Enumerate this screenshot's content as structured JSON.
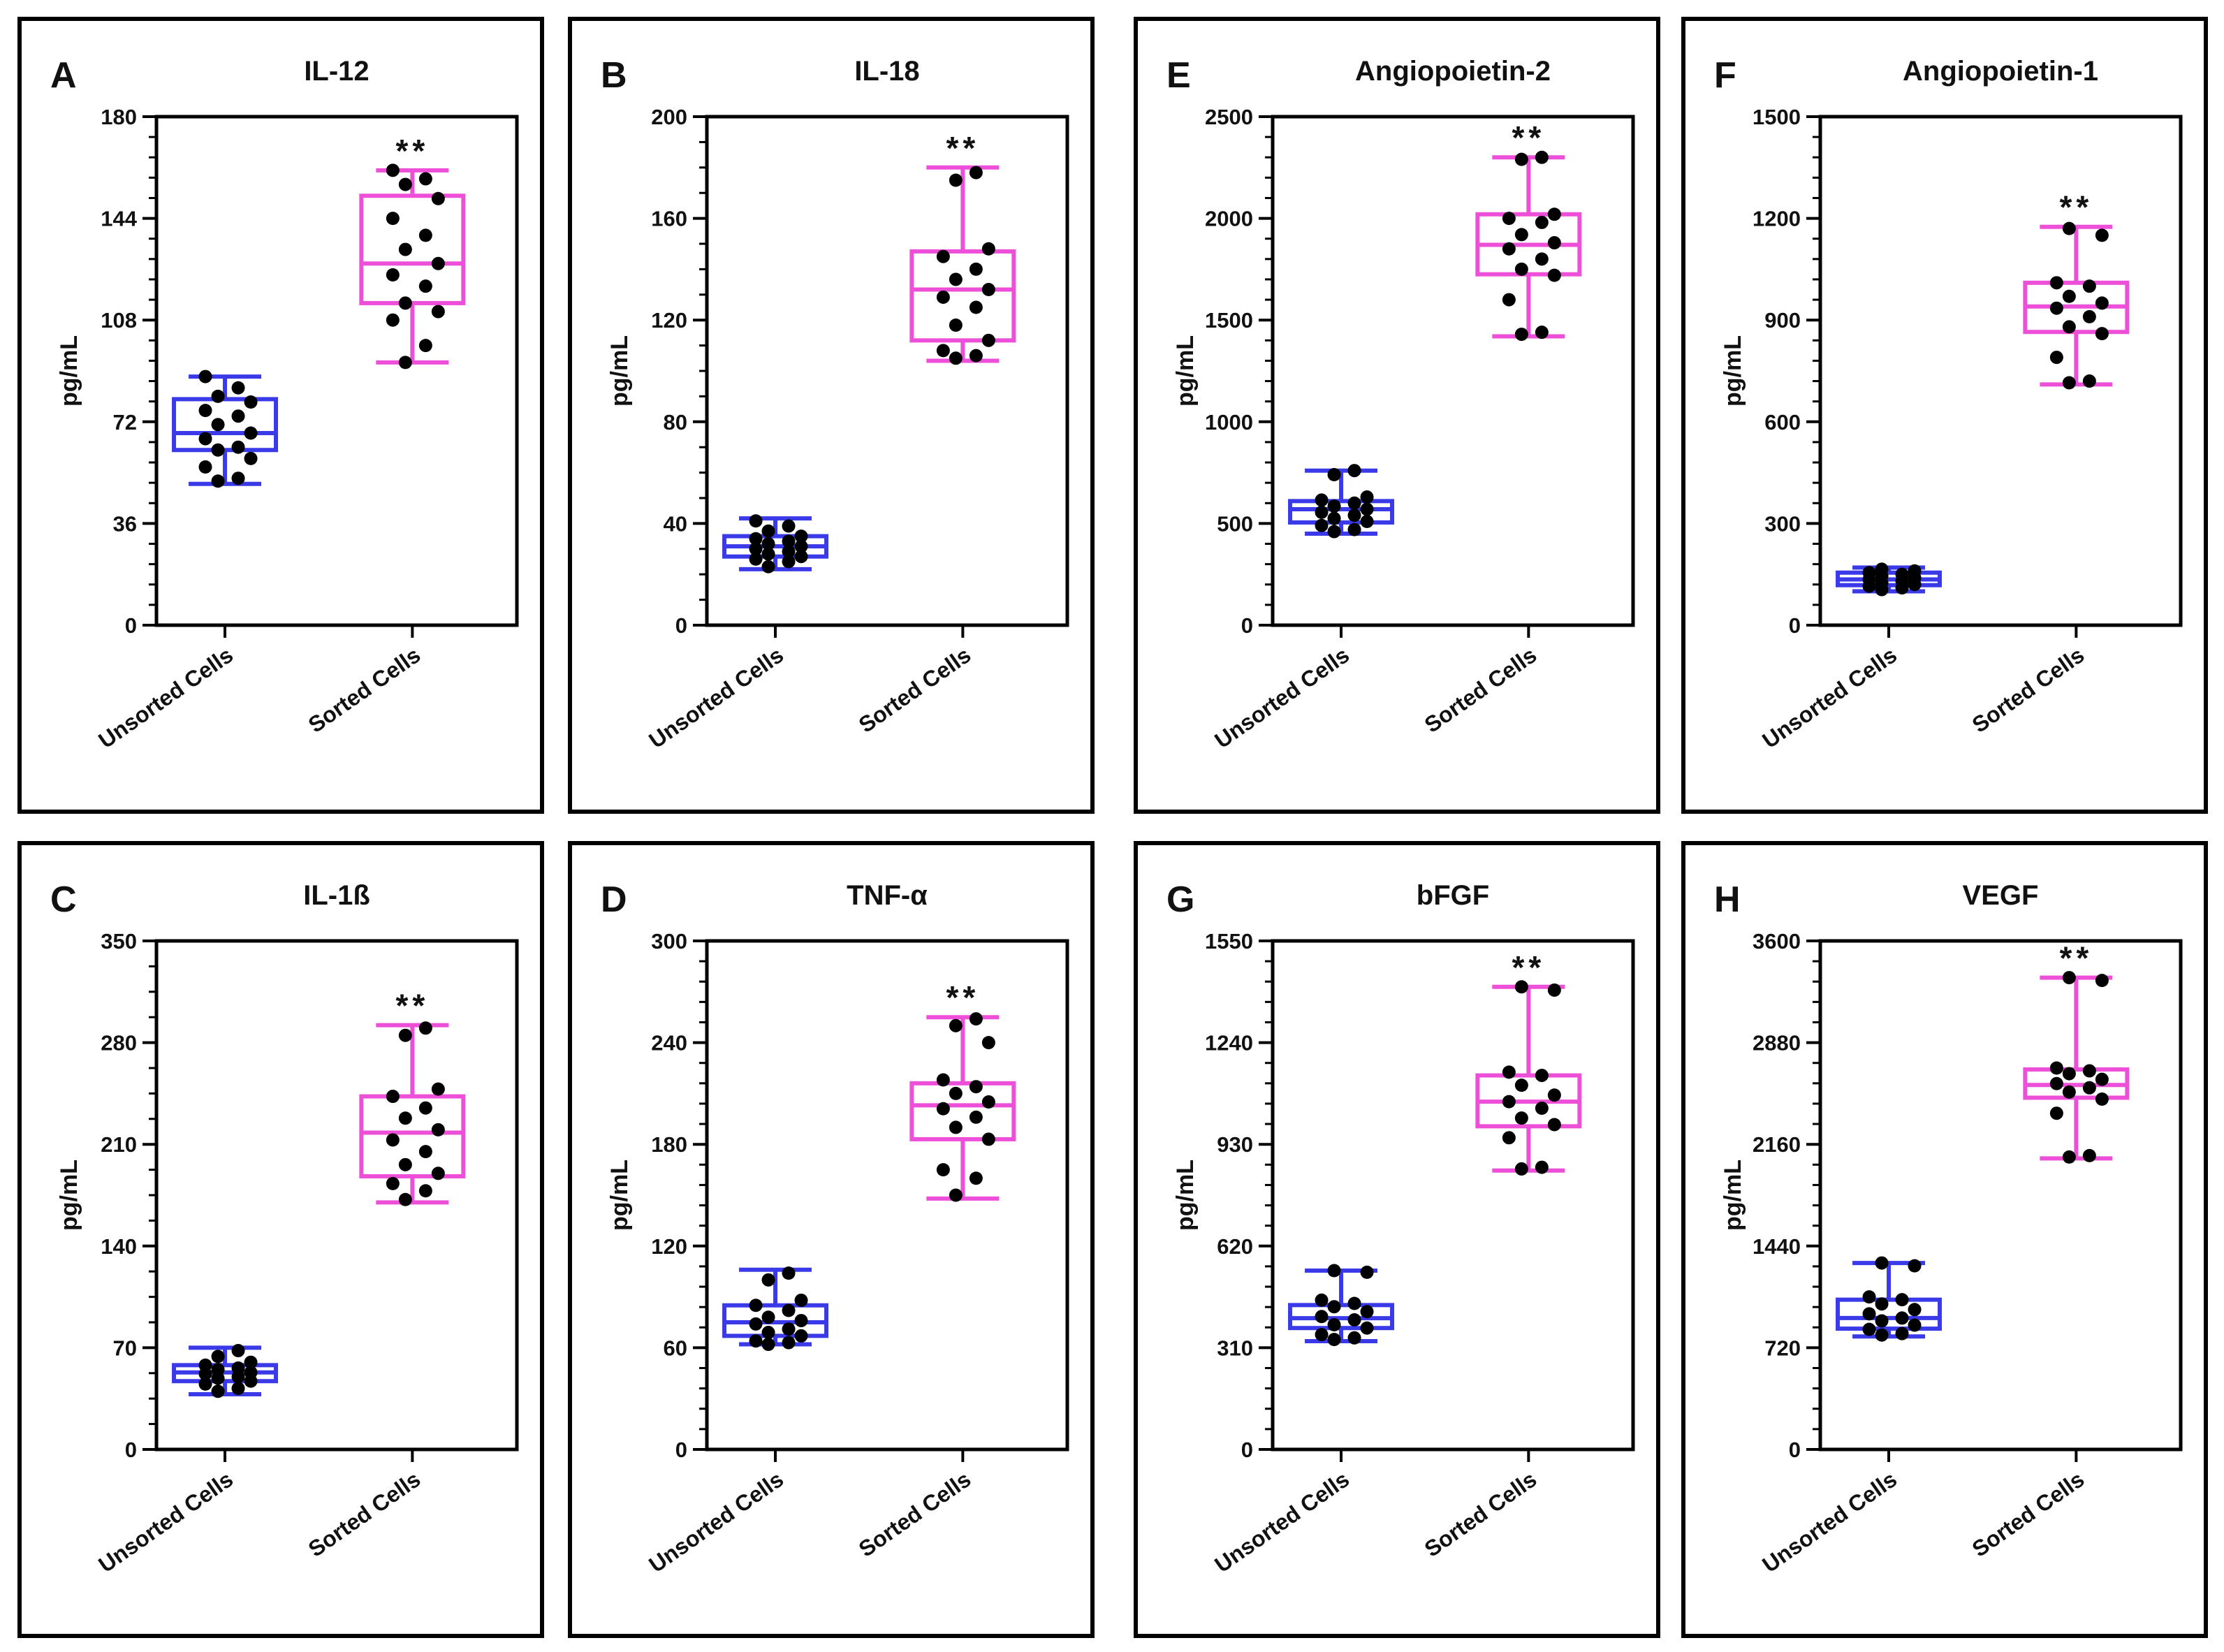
{
  "figure": {
    "colors": {
      "unsorted": "#3a3ae8",
      "sorted": "#ee4fd8",
      "points": "#000000",
      "frame": "#000000"
    }
  },
  "chart_data": [
    {
      "letter": "A",
      "title": "IL-12",
      "type": "box",
      "ylabel": "pg/mL",
      "ylim": [
        0,
        180
      ],
      "yticks": [
        "0",
        "36",
        "72",
        "108",
        "144",
        "180"
      ],
      "yminor": 4,
      "categories": [
        "Unsorted Cells",
        "Sorted Cells"
      ],
      "significance": "**",
      "series": [
        {
          "name": "Unsorted Cells",
          "min": 50,
          "q1": 62,
          "median": 68,
          "q3": 80,
          "max": 88,
          "points": [
            51,
            52,
            56,
            59,
            62,
            63,
            66,
            68,
            71,
            74,
            76,
            79,
            81,
            84,
            88
          ]
        },
        {
          "name": "Sorted Cells",
          "min": 93,
          "q1": 114,
          "median": 128,
          "q3": 152,
          "max": 161,
          "points": [
            93,
            99,
            108,
            111,
            114,
            120,
            124,
            128,
            133,
            138,
            144,
            151,
            156,
            158,
            161
          ]
        }
      ]
    },
    {
      "letter": "B",
      "title": "IL-18",
      "type": "box",
      "ylabel": "pg/mL",
      "ylim": [
        0,
        200
      ],
      "yticks": [
        "0",
        "40",
        "80",
        "120",
        "160",
        "200"
      ],
      "yminor": 3,
      "categories": [
        "Unsorted Cells",
        "Sorted Cells"
      ],
      "significance": "**",
      "series": [
        {
          "name": "Unsorted Cells",
          "min": 22,
          "q1": 27,
          "median": 31,
          "q3": 35,
          "max": 42,
          "points": [
            23,
            25,
            26,
            27,
            28,
            29,
            30,
            31,
            32,
            33,
            34,
            35,
            37,
            39,
            41
          ]
        },
        {
          "name": "Sorted Cells",
          "min": 104,
          "q1": 112,
          "median": 132,
          "q3": 147,
          "max": 180,
          "points": [
            105,
            106,
            108,
            112,
            118,
            125,
            129,
            132,
            136,
            140,
            145,
            148,
            175,
            178
          ]
        }
      ]
    },
    {
      "letter": "E",
      "title": "Angiopoietin-2",
      "type": "box",
      "ylabel": "pg/mL",
      "ylim": [
        0,
        2500
      ],
      "yticks": [
        "0",
        "500",
        "1000",
        "1500",
        "2000",
        "2500"
      ],
      "yminor": 4,
      "categories": [
        "Unsorted Cells",
        "Sorted Cells"
      ],
      "significance": "**",
      "series": [
        {
          "name": "Unsorted Cells",
          "min": 450,
          "q1": 505,
          "median": 570,
          "q3": 610,
          "max": 760,
          "points": [
            460,
            470,
            490,
            510,
            525,
            540,
            555,
            570,
            585,
            600,
            615,
            630,
            740,
            760
          ]
        },
        {
          "name": "Sorted Cells",
          "min": 1420,
          "q1": 1725,
          "median": 1870,
          "q3": 2020,
          "max": 2300,
          "points": [
            1430,
            1440,
            1600,
            1720,
            1750,
            1800,
            1850,
            1880,
            1920,
            1980,
            2000,
            2020,
            2290,
            2300
          ]
        }
      ]
    },
    {
      "letter": "F",
      "title": "Angiopoietin-1",
      "type": "box",
      "ylabel": "pg/mL",
      "ylim": [
        0,
        1500
      ],
      "yticks": [
        "0",
        "300",
        "600",
        "900",
        "1200",
        "1500"
      ],
      "yminor": 4,
      "categories": [
        "Unsorted Cells",
        "Sorted Cells"
      ],
      "significance": "**",
      "series": [
        {
          "name": "Unsorted Cells",
          "min": 100,
          "q1": 118,
          "median": 135,
          "q3": 155,
          "max": 170,
          "points": [
            105,
            110,
            115,
            120,
            125,
            130,
            135,
            140,
            145,
            150,
            155,
            160,
            165
          ]
        },
        {
          "name": "Sorted Cells",
          "min": 710,
          "q1": 865,
          "median": 940,
          "q3": 1010,
          "max": 1175,
          "points": [
            715,
            720,
            790,
            860,
            880,
            910,
            935,
            950,
            970,
            1000,
            1010,
            1150,
            1170
          ]
        }
      ]
    },
    {
      "letter": "C",
      "title": "IL-1ß",
      "type": "box",
      "ylabel": "pg/mL",
      "ylim": [
        0,
        350
      ],
      "yticks": [
        "0",
        "70",
        "140",
        "210",
        "280",
        "350"
      ],
      "yminor": 3,
      "categories": [
        "Unsorted Cells",
        "Sorted Cells"
      ],
      "significance": "**",
      "series": [
        {
          "name": "Unsorted Cells",
          "min": 38,
          "q1": 47,
          "median": 53,
          "q3": 58,
          "max": 70,
          "points": [
            40,
            42,
            45,
            47,
            49,
            50,
            52,
            53,
            55,
            56,
            58,
            60,
            64,
            68
          ]
        },
        {
          "name": "Sorted Cells",
          "min": 170,
          "q1": 188,
          "median": 218,
          "q3": 243,
          "max": 292,
          "points": [
            172,
            178,
            183,
            190,
            196,
            205,
            213,
            220,
            228,
            235,
            243,
            248,
            285,
            290
          ]
        }
      ]
    },
    {
      "letter": "D",
      "title": "TNF-α",
      "type": "box",
      "ylabel": "pg/mL",
      "ylim": [
        0,
        300
      ],
      "yticks": [
        "0",
        "60",
        "120",
        "180",
        "240",
        "300"
      ],
      "yminor": 4,
      "categories": [
        "Unsorted Cells",
        "Sorted Cells"
      ],
      "significance": "**",
      "series": [
        {
          "name": "Unsorted Cells",
          "min": 62,
          "q1": 67,
          "median": 75,
          "q3": 85,
          "max": 106,
          "points": [
            62,
            63,
            64,
            67,
            69,
            71,
            74,
            76,
            78,
            82,
            85,
            88,
            100,
            104
          ]
        },
        {
          "name": "Sorted Cells",
          "min": 148,
          "q1": 183,
          "median": 203,
          "q3": 216,
          "max": 255,
          "points": [
            150,
            160,
            165,
            183,
            190,
            196,
            201,
            205,
            210,
            214,
            218,
            240,
            250,
            254
          ]
        }
      ]
    },
    {
      "letter": "G",
      "title": "bFGF",
      "type": "box",
      "ylabel": "pg/mL",
      "ylim": [
        0,
        1550
      ],
      "yticks": [
        "0",
        "310",
        "620",
        "930",
        "1240",
        "1550"
      ],
      "yminor": 4,
      "categories": [
        "Unsorted Cells",
        "Sorted Cells"
      ],
      "significance": "**",
      "series": [
        {
          "name": "Unsorted Cells",
          "min": 330,
          "q1": 370,
          "median": 400,
          "q3": 440,
          "max": 545,
          "points": [
            335,
            340,
            350,
            370,
            380,
            395,
            405,
            420,
            435,
            445,
            455,
            540,
            545
          ]
        },
        {
          "name": "Sorted Cells",
          "min": 850,
          "q1": 985,
          "median": 1060,
          "q3": 1140,
          "max": 1410,
          "points": [
            855,
            860,
            950,
            990,
            1010,
            1040,
            1060,
            1080,
            1110,
            1140,
            1150,
            1400,
            1410
          ]
        }
      ]
    },
    {
      "letter": "H",
      "title": "VEGF",
      "type": "box",
      "ylabel": "pg/mL",
      "ylim": [
        0,
        3600
      ],
      "yticks": [
        "0",
        "720",
        "1440",
        "2160",
        "2880",
        "3600"
      ],
      "yminor": 4,
      "categories": [
        "Unsorted Cells",
        "Sorted Cells"
      ],
      "significance": "**",
      "series": [
        {
          "name": "Unsorted Cells",
          "min": 800,
          "q1": 855,
          "median": 930,
          "q3": 1060,
          "max": 1320,
          "points": [
            810,
            820,
            850,
            880,
            910,
            930,
            960,
            990,
            1030,
            1060,
            1080,
            1300,
            1320
          ]
        },
        {
          "name": "Sorted Cells",
          "min": 2060,
          "q1": 2490,
          "median": 2580,
          "q3": 2690,
          "max": 3340,
          "points": [
            2070,
            2080,
            2380,
            2480,
            2530,
            2560,
            2590,
            2620,
            2660,
            2680,
            2700,
            3320,
            3340
          ]
        }
      ]
    }
  ]
}
